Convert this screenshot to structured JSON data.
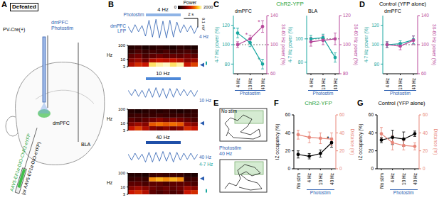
{
  "panel_labels": [
    "A",
    "B",
    "C",
    "D",
    "E",
    "F",
    "G"
  ],
  "diagram_A": {
    "condition": "Defeated",
    "mouse": "PV-Cre(+)",
    "fiber_label": [
      "dmPFC",
      "Photostim"
    ],
    "virus": [
      "AAV5-EF1α-DIO-ChR2-eYFP",
      "(or AAV5-EF1α-DIO-eYFP)"
    ],
    "regions": [
      "dmPFC",
      "BLA"
    ]
  },
  "diagram_E": {
    "top": "No stim",
    "bottom": [
      "Photostim",
      "40 Hz"
    ]
  },
  "headers": {
    "C": {
      "text": "ChR2-YFP",
      "color": "#2aa33a"
    },
    "D": {
      "text": "Control (YFP alone)",
      "color": "#000000"
    },
    "F": {
      "text": "ChR2-YFP",
      "color": "#2aa33a"
    },
    "G": {
      "text": "Control (YFP alone)",
      "color": "#000000"
    }
  },
  "colorbar": {
    "label": "Power",
    "range": [
      0,
      2000
    ],
    "ticks": [
      0,
      2000
    ]
  },
  "chart_data": [
    {
      "type": "line",
      "title": "4 Hz",
      "x": [
        0,
        0.5,
        1,
        1.5,
        2,
        2.5,
        3,
        3.5,
        4,
        4.5,
        5,
        5.5,
        6,
        6.5,
        7,
        7.5,
        8,
        8.5,
        9,
        9.5,
        10
      ],
      "series": [
        {
          "name": "dmPFC LFP",
          "color": "#2a5db0",
          "values": [
            0.03,
            -0.04,
            0.05,
            -0.03,
            0.04,
            -0.08,
            0.1,
            -0.09,
            0.11,
            -0.1,
            0.09,
            -0.1,
            0.1,
            -0.09,
            0.08,
            -0.04,
            0.05,
            -0.03,
            0.04,
            -0.05,
            0.03
          ]
        }
      ],
      "xlim": [
        0,
        10
      ],
      "ylim": [
        -0.12,
        0.12
      ],
      "tick_labels": false,
      "stim": {
        "label": "Photostim",
        "range": [
          2.5,
          7.5
        ],
        "color": "#8fb4e6"
      },
      "annotations": [
        {
          "text": "4 Hz",
          "color": "#2a5db0"
        }
      ],
      "scale_bar": {
        "x": 2,
        "x_label": "2 s",
        "y": 0.1,
        "y_label": "0.1 mV"
      }
    },
    {
      "type": "line",
      "title": "10 Hz",
      "x": [
        0,
        0.5,
        1,
        1.5,
        2,
        2.5,
        3,
        3.5,
        4,
        4.5,
        5,
        5.5,
        6,
        6.5,
        7,
        7.5,
        8,
        8.5,
        9,
        9.5,
        10
      ],
      "series": [
        {
          "color": "#2a5db0",
          "values": [
            0.03,
            -0.03,
            0.04,
            -0.04,
            0.03,
            -0.05,
            0.05,
            -0.05,
            0.06,
            -0.05,
            0.05,
            -0.06,
            0.05,
            -0.05,
            0.05,
            -0.03,
            0.04,
            -0.03,
            0.03,
            -0.04,
            0.03
          ]
        }
      ],
      "xlim": [
        0,
        10
      ],
      "ylim": [
        -0.12,
        0.12
      ],
      "tick_labels": false,
      "stim": {
        "range": [
          2.5,
          7.5
        ],
        "color": "#4d88d8"
      },
      "annotations": [
        {
          "text": "10 Hz",
          "color": "#2a5db0"
        }
      ]
    },
    {
      "type": "line",
      "title": "40 Hz",
      "x": [
        0,
        0.5,
        1,
        1.5,
        2,
        2.5,
        3,
        3.5,
        4,
        4.5,
        5,
        5.5,
        6,
        6.5,
        7,
        7.5,
        8,
        8.5,
        9,
        9.5,
        10
      ],
      "series": [
        {
          "color": "#2a5db0",
          "values": [
            0.03,
            -0.04,
            0.04,
            -0.03,
            0.03,
            -0.06,
            0.05,
            -0.06,
            0.05,
            -0.05,
            0.06,
            -0.05,
            0.05,
            -0.06,
            0.05,
            -0.04,
            0.04,
            -0.03,
            0.04,
            -0.03,
            0.03
          ]
        }
      ],
      "xlim": [
        0,
        10
      ],
      "ylim": [
        -0.12,
        0.12
      ],
      "tick_labels": false,
      "stim": {
        "range": [
          2.5,
          7.5
        ],
        "color": "#1f4fa8"
      },
      "annotations": [
        {
          "text": "40 Hz",
          "color": "#2a5db0"
        },
        {
          "text": "4-7 Hz",
          "color": "#1aa7a0"
        }
      ]
    },
    {
      "type": "heatmap",
      "x_bins": [
        0,
        1,
        2,
        3,
        4,
        5,
        6,
        7,
        8,
        9,
        10
      ],
      "y_bins": [
        3,
        6,
        12,
        25,
        50,
        100
      ],
      "cells": [
        [
          900,
          1100,
          1000,
          1800,
          1900,
          1950,
          1800,
          1900,
          1000,
          1200
        ],
        [
          700,
          800,
          600,
          900,
          1000,
          950,
          1000,
          900,
          700,
          800
        ],
        [
          500,
          600,
          400,
          500,
          600,
          500,
          550,
          500,
          600,
          500
        ],
        [
          300,
          400,
          300,
          350,
          300,
          400,
          300,
          350,
          400,
          300
        ],
        [
          200,
          250,
          150,
          200,
          250,
          200,
          150,
          250,
          200,
          150
        ]
      ],
      "xlim": [
        0,
        10
      ],
      "ylim": [
        3,
        100
      ],
      "yticks": [
        3,
        10,
        100
      ],
      "log": "y",
      "ylabel": "Hz",
      "tick_labels": "y",
      "freq_marks": [
        {
          "value": 4,
          "color": "#2a5db0"
        }
      ],
      "freq_bands": [
        {
          "range": [
            4,
            7
          ],
          "color": "#1aa7a0"
        }
      ]
    },
    {
      "type": "heatmap",
      "x_bins": [
        0,
        1,
        2,
        3,
        4,
        5,
        6,
        7,
        8,
        9,
        10
      ],
      "y_bins": [
        3,
        6,
        12,
        25,
        50,
        100
      ],
      "cells": [
        [
          1000,
          1200,
          900,
          700,
          600,
          700,
          600,
          700,
          1100,
          1000
        ],
        [
          700,
          800,
          700,
          1300,
          1400,
          1300,
          1400,
          1300,
          800,
          700
        ],
        [
          500,
          400,
          500,
          600,
          700,
          600,
          700,
          600,
          500,
          400
        ],
        [
          300,
          350,
          300,
          300,
          350,
          300,
          300,
          350,
          300,
          300
        ],
        [
          200,
          150,
          200,
          250,
          200,
          250,
          200,
          150,
          200,
          250
        ]
      ],
      "xlim": [
        0,
        10
      ],
      "ylim": [
        3,
        100
      ],
      "yticks": [
        3,
        10,
        100
      ],
      "log": "y",
      "ylabel": "Hz",
      "tick_labels": "y",
      "freq_marks": [
        {
          "value": 10,
          "color": "#2a5db0"
        }
      ],
      "freq_bands": []
    },
    {
      "type": "heatmap",
      "x_bins": [
        0,
        1,
        2,
        3,
        4,
        5,
        6,
        7,
        8,
        9,
        10
      ],
      "y_bins": [
        3,
        6,
        12,
        25,
        50,
        100
      ],
      "cells": [
        [
          1000,
          1100,
          900,
          500,
          400,
          500,
          400,
          500,
          1000,
          1100
        ],
        [
          700,
          800,
          700,
          600,
          500,
          600,
          500,
          600,
          800,
          700
        ],
        [
          500,
          500,
          400,
          500,
          500,
          400,
          500,
          500,
          500,
          400
        ],
        [
          300,
          350,
          300,
          1500,
          1600,
          1500,
          1600,
          1500,
          300,
          350
        ],
        [
          200,
          200,
          150,
          300,
          350,
          300,
          350,
          300,
          200,
          150
        ]
      ],
      "xlim": [
        0,
        10
      ],
      "ylim": [
        3,
        100
      ],
      "yticks": [
        3,
        10,
        100
      ],
      "log": "y",
      "ylabel": "Hz",
      "tick_labels": "y",
      "freq_marks": [
        {
          "value": 40,
          "color": "#2a5db0"
        }
      ],
      "freq_bands": [
        {
          "range": [
            4,
            7
          ],
          "color": "#1aa7a0"
        }
      ]
    },
    {
      "type": "line",
      "title": "dmPFC",
      "categories": [
        "4 Hz",
        "10 Hz",
        "40 Hz"
      ],
      "x_group": {
        "label": "Photostim",
        "categories": [
          "4 Hz",
          "10 Hz",
          "40 Hz"
        ]
      },
      "ylabel": "4-7 Hz power (%)",
      "y2label": "30-60 Hz power (%)",
      "ylim": [
        70,
        130
      ],
      "yticks": [
        80,
        100,
        120
      ],
      "y2lim": [
        60,
        140
      ],
      "y2ticks": [
        60,
        100,
        140
      ],
      "reference": 100,
      "marker": "circle",
      "series": [
        {
          "color": "#1aa7a0",
          "values": [
            112,
            102,
            80
          ],
          "errors": [
            5,
            4,
            5
          ],
          "annotations": [
            {
              "text": "*",
              "x": "4 Hz"
            },
            {
              "text": "*",
              "x": "40 Hz"
            }
          ]
        },
        {
          "color": "#b8489b",
          "axis": "y2",
          "values": [
            100,
            108,
            125
          ],
          "errors": [
            4,
            5,
            8
          ],
          "annotations": [
            {
              "text": "*",
              "x": "10 Hz"
            },
            {
              "text": "*",
              "x": "40 Hz"
            }
          ]
        }
      ]
    },
    {
      "type": "line",
      "title": "BLA",
      "categories": [
        "4 Hz",
        "10 Hz",
        "40 Hz"
      ],
      "x_group": {
        "label": "Photostim",
        "categories": [
          "4 Hz",
          "10 Hz",
          "40 Hz"
        ]
      },
      "ylabel": "4-7 Hz power (%)",
      "y2label": "30-60 Hz power (%)",
      "ylim": [
        70,
        120
      ],
      "yticks": [
        80,
        100
      ],
      "y2lim": [
        80,
        120
      ],
      "y2ticks": [
        80,
        100,
        120
      ],
      "reference": 100,
      "marker": "circle",
      "series": [
        {
          "color": "#1aa7a0",
          "values": [
            100,
            101,
            84
          ],
          "errors": [
            3,
            3,
            4
          ],
          "annotations": [
            {
              "text": "*",
              "x": "40 Hz"
            }
          ]
        },
        {
          "color": "#b8489b",
          "axis": "y2",
          "values": [
            102,
            103,
            104
          ],
          "errors": [
            3,
            3,
            4
          ]
        }
      ]
    },
    {
      "type": "line",
      "title": "dmPFC",
      "categories": [
        "4 Hz",
        "10 Hz",
        "40 Hz"
      ],
      "x_group": {
        "label": "Photostim",
        "categories": [
          "4 Hz",
          "10 Hz",
          "40 Hz"
        ]
      },
      "ylabel": "4-7 Hz power (%)",
      "y2label": "30-60 Hz power (%)",
      "ylim": [
        70,
        130
      ],
      "yticks": [
        80,
        100,
        120
      ],
      "y2lim": [
        60,
        140
      ],
      "y2ticks": [
        60,
        100,
        140
      ],
      "reference": 100,
      "marker": "circle",
      "series": [
        {
          "color": "#1aa7a0",
          "values": [
            100,
            101,
            105
          ],
          "errors": [
            3,
            3,
            4
          ]
        },
        {
          "color": "#b8489b",
          "axis": "y2",
          "values": [
            100,
            98,
            106
          ],
          "errors": [
            4,
            5,
            6
          ]
        }
      ]
    },
    {
      "type": "line",
      "categories": [
        "No stim",
        "4 Hz",
        "10 Hz",
        "40 Hz"
      ],
      "x_group": {
        "label": "Photostim",
        "categories": [
          "4 Hz",
          "10 Hz",
          "40 Hz"
        ]
      },
      "ylabel": "IZ occupancy (%)",
      "y2label": "Distance (m)",
      "ylim": [
        0,
        60
      ],
      "yticks": [
        0,
        20,
        40,
        60
      ],
      "y2lim": [
        0,
        60
      ],
      "y2ticks": [
        0,
        20,
        40,
        60
      ],
      "marker": "circle",
      "series": [
        {
          "color": "#000000",
          "values": [
            16,
            14,
            17,
            29
          ],
          "errors": [
            4,
            3,
            4,
            5
          ],
          "annotations": [
            {
              "text": "*",
              "x": "40 Hz"
            }
          ]
        },
        {
          "color": "#e8877a",
          "axis": "y2",
          "values": [
            38,
            35,
            34,
            33
          ],
          "errors": [
            5,
            6,
            6,
            7
          ]
        }
      ]
    },
    {
      "type": "line",
      "categories": [
        "No stim",
        "4 Hz",
        "10 Hz",
        "40 Hz"
      ],
      "x_group": {
        "label": "Photostim",
        "categories": [
          "4 Hz",
          "10 Hz",
          "40 Hz"
        ]
      },
      "ylabel": "IZ occupancy (%)",
      "y2label": "Distance (m)",
      "ylim": [
        0,
        60
      ],
      "yticks": [
        0,
        20,
        40,
        60
      ],
      "y2lim": [
        0,
        60
      ],
      "y2ticks": [
        0,
        20,
        40,
        60
      ],
      "marker": "circle",
      "series": [
        {
          "color": "#000000",
          "values": [
            32,
            35,
            33,
            39
          ],
          "errors": [
            3,
            8,
            8,
            3
          ]
        },
        {
          "color": "#e8877a",
          "axis": "y2",
          "values": [
            39,
            29,
            26,
            25
          ],
          "errors": [
            7,
            8,
            5,
            4
          ]
        }
      ]
    }
  ]
}
